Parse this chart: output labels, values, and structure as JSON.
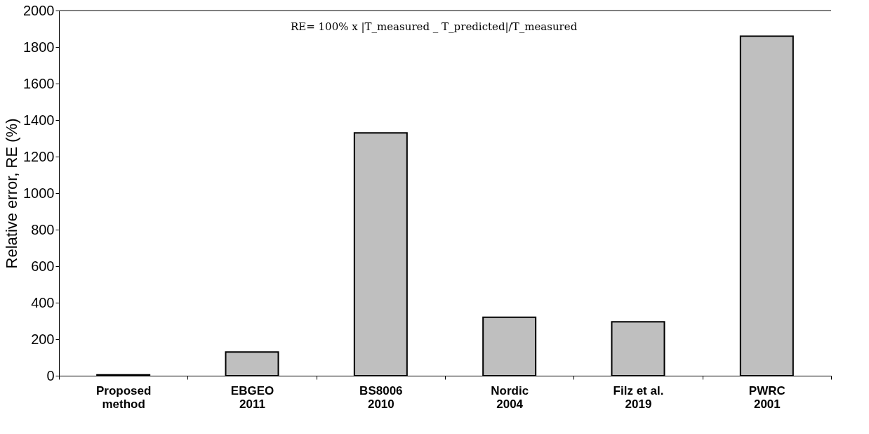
{
  "chart_data": {
    "type": "bar",
    "categories": [
      "Proposed\nmethod",
      "EBGEO\n2011",
      "BS8006\n2010",
      "Nordic\n2004",
      "Filz et al.\n2019",
      "PWRC\n2001"
    ],
    "values": [
      5,
      130,
      1330,
      320,
      295,
      1860
    ],
    "color": "#bfbfbf",
    "ylabel": "Relative error, RE (%)",
    "ylim": [
      0,
      2000
    ],
    "yticks": [
      0,
      200,
      400,
      600,
      800,
      1000,
      1200,
      1400,
      1600,
      1800,
      2000
    ],
    "grid": false,
    "annotations": [
      "RE= 100% x |T_measured _ T_predicted|/T_measured"
    ]
  }
}
